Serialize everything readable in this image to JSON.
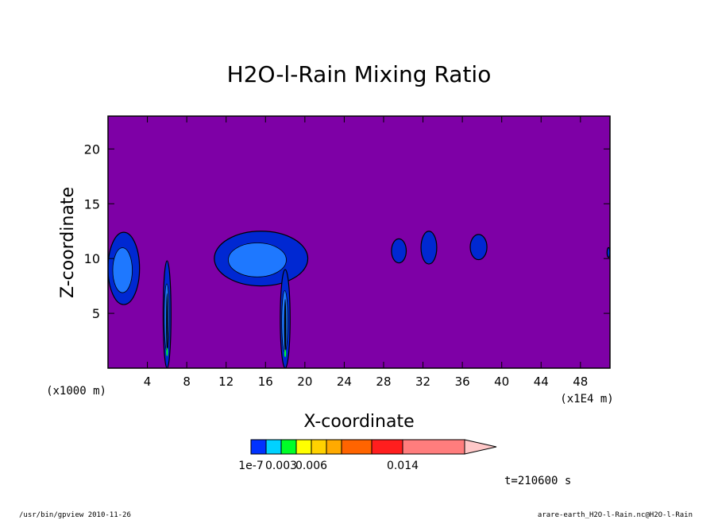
{
  "chart_data": {
    "type": "contour",
    "title": "H2O-l-Rain Mixing Ratio",
    "xlabel": "X-coordinate",
    "ylabel": "Z-coordinate",
    "x_unit_left": "(x1000 m)",
    "x_unit_right": "(x1E4 m)",
    "xlim": [
      0,
      51
    ],
    "ylim": [
      0,
      23
    ],
    "xticks": [
      4,
      8,
      12,
      16,
      20,
      24,
      28,
      32,
      36,
      40,
      44,
      48
    ],
    "yticks": [
      5,
      10,
      15,
      20
    ],
    "grid": false,
    "background_color": "#7e00a6",
    "contour_levels": [
      "1e-7",
      "0.003",
      "0.006",
      "0.014"
    ],
    "colorbar_colors": [
      "#0032ff",
      "#00d2ff",
      "#00ff28",
      "#ffff00",
      "#ffd200",
      "#ffaa00",
      "#ff6400",
      "#ff1e1e",
      "#ff7d7d",
      "#ffc8c8"
    ],
    "fill_colors": {
      "outer": "#0028d2",
      "inner": "#1e78ff",
      "core": "#00ff28"
    },
    "regions": [
      {
        "x": [
          0,
          3.2
        ],
        "z": [
          5.8,
          12.4
        ],
        "max_level": "0.003"
      },
      {
        "x": [
          5.6,
          6.4
        ],
        "z": [
          0,
          9.8
        ],
        "max_level": "0.003"
      },
      {
        "x": [
          10.8,
          20.3
        ],
        "z": [
          7.5,
          12.5
        ],
        "max_level": "0.003"
      },
      {
        "x": [
          17.5,
          18.5
        ],
        "z": [
          0,
          9.0
        ],
        "max_level": "0.003"
      },
      {
        "x": [
          28.8,
          30.3
        ],
        "z": [
          9.6,
          11.8
        ],
        "max_level": "1e-7"
      },
      {
        "x": [
          31.8,
          33.4
        ],
        "z": [
          9.5,
          12.5
        ],
        "max_level": "1e-7"
      },
      {
        "x": [
          36.8,
          38.5
        ],
        "z": [
          9.9,
          12.2
        ],
        "max_level": "1e-7"
      },
      {
        "x": [
          50.7,
          51
        ],
        "z": [
          10.1,
          11.0
        ],
        "max_level": "1e-7"
      }
    ]
  },
  "annotations": {
    "time": "t=210600 s",
    "footer_left": "/usr/bin/gpview   2010-11-26",
    "footer_right": "arare-earth_H2O-l-Rain.nc@H2O-l-Rain"
  }
}
